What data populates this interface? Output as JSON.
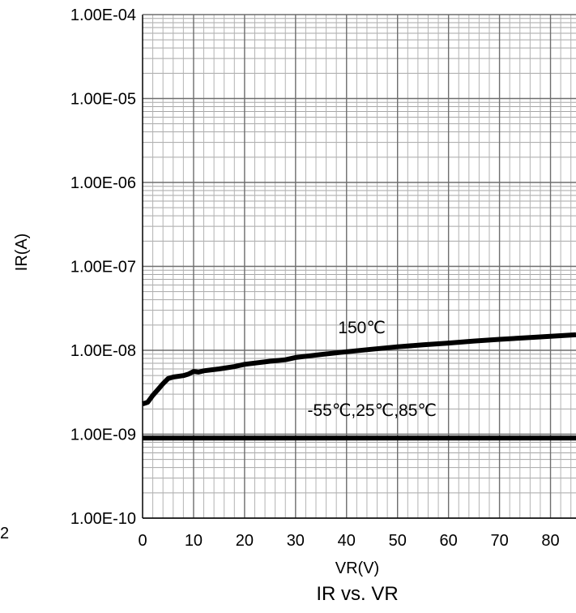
{
  "chart_data": {
    "type": "line",
    "title": "IR vs. VR",
    "xlabel": "VR(V)",
    "ylabel": "IR(A)",
    "xlim": [
      0,
      85
    ],
    "ylim": [
      1e-10,
      0.0001
    ],
    "yscale": "log",
    "grid": true,
    "x_ticks": [
      "0",
      "10",
      "20",
      "30",
      "40",
      "50",
      "60",
      "70",
      "80"
    ],
    "y_ticks": [
      "1.00E-04",
      "1.00E-05",
      "1.00E-06",
      "1.00E-07",
      "1.00E-08",
      "1.00E-09",
      "1.00E-10"
    ],
    "stray_label": "2",
    "series": [
      {
        "name": "150℃",
        "x": [
          0,
          1,
          2,
          3,
          4,
          5,
          6,
          8,
          9,
          10,
          11,
          12,
          15,
          18,
          20,
          25,
          28,
          30,
          35,
          40,
          45,
          50,
          55,
          60,
          65,
          70,
          75,
          80,
          85
        ],
        "y": [
          2.3e-09,
          2.4e-09,
          2.9e-09,
          3.4e-09,
          4e-09,
          4.6e-09,
          4.8e-09,
          5e-09,
          5.2e-09,
          5.6e-09,
          5.5e-09,
          5.7e-09,
          6e-09,
          6.4e-09,
          6.8e-09,
          7.4e-09,
          7.7e-09,
          8.2e-09,
          8.9e-09,
          9.6e-09,
          1.03e-08,
          1.1e-08,
          1.16e-08,
          1.22e-08,
          1.29e-08,
          1.35e-08,
          1.41e-08,
          1.47e-08,
          1.53e-08
        ]
      },
      {
        "name": "-55℃,25℃,85℃",
        "x": [
          0,
          85
        ],
        "y": [
          9e-10,
          9e-10
        ]
      }
    ],
    "annotations": [
      {
        "text": "150℃",
        "x": 43,
        "y": 1.6e-08
      },
      {
        "text": "-55℃,25℃,85℃",
        "x": 45,
        "y": 1.65e-09
      }
    ]
  }
}
